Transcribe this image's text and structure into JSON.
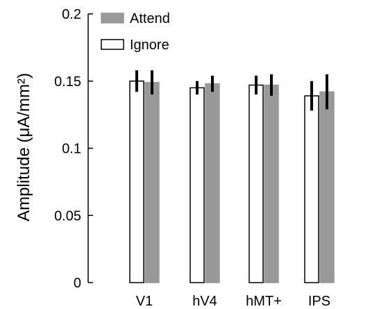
{
  "chart_data": {
    "type": "bar",
    "title": "",
    "xlabel": "",
    "ylabel": "Amplitude (μA/mm²)",
    "ylim": [
      0,
      0.2
    ],
    "yticks": [
      0,
      0.05,
      0.1,
      0.15,
      0.2
    ],
    "ytick_labels": [
      "0",
      "0.05",
      "0.1",
      "0.15",
      "0.2"
    ],
    "categories": [
      "V1",
      "hV4",
      "hMT+",
      "IPS"
    ],
    "grid": false,
    "legend_position": "top-left",
    "series": [
      {
        "name": "Ignore",
        "color": "#ffffff",
        "edge": "#000000",
        "values": [
          0.15,
          0.145,
          0.147,
          0.139
        ],
        "errors": [
          0.008,
          0.005,
          0.007,
          0.011
        ]
      },
      {
        "name": "Attend",
        "color": "#999999",
        "edge": "#999999",
        "values": [
          0.149,
          0.148,
          0.147,
          0.142
        ],
        "errors": [
          0.009,
          0.006,
          0.008,
          0.013
        ]
      }
    ]
  }
}
